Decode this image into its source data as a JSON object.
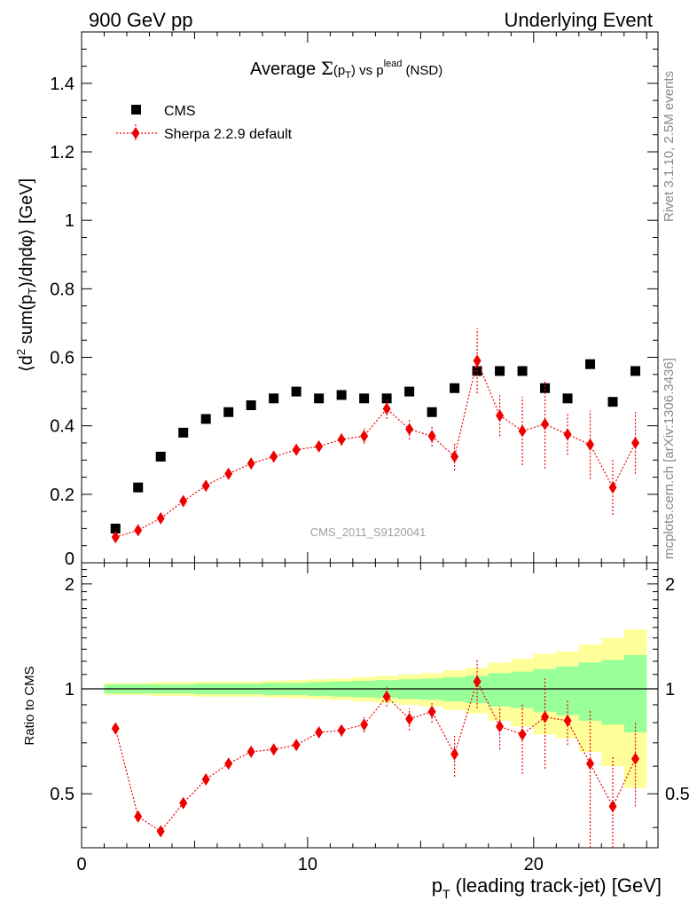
{
  "header": {
    "left": "900 GeV pp",
    "right": "Underlying Event"
  },
  "side_labels": {
    "rivet": "Rivet 3.1.10,  2.5M events",
    "mcplots": "mcplots.cern.ch [arXiv:1306.3436]"
  },
  "plot_title": {
    "prefix": "Average ",
    "sigma": "Σ",
    "pt_open": "(p",
    "t_sub": "T",
    "pt_close": ")",
    "vs": " vs p",
    "lead_sup": "lead",
    "suffix": " (NSD)"
  },
  "y_label": {
    "part1": "⟨d",
    "sup2": "2",
    "part2": " sum(p",
    "sub": "T",
    "part3": ")/dηdφ⟩ [GeV]"
  },
  "x_label": {
    "p": "p",
    "sub": "T",
    "rest": " (leading track-jet) [GeV]"
  },
  "ratio_label": "Ratio to CMS",
  "watermark": "CMS_2011_S9120041",
  "legend": [
    {
      "name": "CMS",
      "marker": "square",
      "color": "#000000"
    },
    {
      "name": "Sherpa 2.2.9 default",
      "marker": "diamond",
      "color": "#ee0000"
    }
  ],
  "colors": {
    "data": "#000000",
    "mc": "#ee0000",
    "band_inner": "#99ff99",
    "band_outer": "#ffff99"
  },
  "chart_data": {
    "type": "scatter",
    "x_edges": [
      1,
      2,
      3,
      4,
      5,
      6,
      7,
      8,
      9,
      10,
      11,
      12,
      13,
      14,
      15,
      16,
      17,
      18,
      19,
      20,
      21,
      22,
      23,
      24,
      25
    ],
    "xlim": [
      0,
      25.5
    ],
    "main": {
      "ylim": [
        0,
        1.55
      ],
      "y_ticks": [
        {
          "v": 0,
          "label": "0"
        },
        {
          "v": 0.2,
          "label": "0.2"
        },
        {
          "v": 0.4,
          "label": "0.4"
        },
        {
          "v": 0.6,
          "label": "0.6"
        },
        {
          "v": 0.8,
          "label": "0.8"
        },
        {
          "v": 1.0,
          "label": "1"
        },
        {
          "v": 1.2,
          "label": "1.2"
        },
        {
          "v": 1.4,
          "label": "1.4"
        }
      ],
      "series": [
        {
          "name": "CMS",
          "x": [
            1.5,
            2.5,
            3.5,
            4.5,
            5.5,
            6.5,
            7.5,
            8.5,
            9.5,
            10.5,
            11.5,
            12.5,
            13.5,
            14.5,
            15.5,
            16.5,
            17.5,
            18.5,
            19.5,
            20.5,
            21.5,
            22.5,
            23.5,
            24.5
          ],
          "y": [
            0.1,
            0.22,
            0.31,
            0.38,
            0.42,
            0.44,
            0.46,
            0.48,
            0.5,
            0.48,
            0.49,
            0.48,
            0.48,
            0.5,
            0.44,
            0.51,
            0.56,
            0.56,
            0.56,
            0.51,
            0.48,
            0.58,
            0.47,
            0.56
          ]
        },
        {
          "name": "Sherpa 2.2.9 default",
          "x": [
            1.5,
            2.5,
            3.5,
            4.5,
            5.5,
            6.5,
            7.5,
            8.5,
            9.5,
            10.5,
            11.5,
            12.5,
            13.5,
            14.5,
            15.5,
            16.5,
            17.5,
            18.5,
            19.5,
            20.5,
            21.5,
            22.5,
            23.5,
            24.5
          ],
          "y": [
            0.075,
            0.095,
            0.13,
            0.18,
            0.225,
            0.26,
            0.29,
            0.31,
            0.33,
            0.34,
            0.36,
            0.37,
            0.45,
            0.39,
            0.37,
            0.31,
            0.59,
            0.43,
            0.385,
            0.405,
            0.375,
            0.345,
            0.22,
            0.35
          ],
          "yerr": [
            0.008,
            0.008,
            0.008,
            0.01,
            0.01,
            0.01,
            0.01,
            0.012,
            0.012,
            0.015,
            0.018,
            0.022,
            0.03,
            0.03,
            0.03,
            0.04,
            0.095,
            0.06,
            0.1,
            0.13,
            0.06,
            0.1,
            0.08,
            0.09
          ]
        }
      ]
    },
    "ratio": {
      "ylim": [
        0.35,
        2.3
      ],
      "ylabel": "Ratio to CMS",
      "y_ticks": [
        {
          "v": 0.5,
          "label": "0.5"
        },
        {
          "v": 1,
          "label": "1"
        },
        {
          "v": 2,
          "label": "2"
        }
      ],
      "band_inner": [
        0.03,
        0.03,
        0.03,
        0.03,
        0.035,
        0.035,
        0.035,
        0.04,
        0.04,
        0.045,
        0.05,
        0.055,
        0.06,
        0.065,
        0.07,
        0.08,
        0.09,
        0.11,
        0.12,
        0.14,
        0.16,
        0.19,
        0.21,
        0.25
      ],
      "band_outer": [
        0.04,
        0.04,
        0.045,
        0.045,
        0.05,
        0.05,
        0.05,
        0.055,
        0.06,
        0.065,
        0.07,
        0.08,
        0.09,
        0.1,
        0.11,
        0.13,
        0.15,
        0.19,
        0.22,
        0.26,
        0.28,
        0.34,
        0.4,
        0.48
      ],
      "x": [
        1.5,
        2.5,
        3.5,
        4.5,
        5.5,
        6.5,
        7.5,
        8.5,
        9.5,
        10.5,
        11.5,
        12.5,
        13.5,
        14.5,
        15.5,
        16.5,
        17.5,
        18.5,
        19.5,
        20.5,
        21.5,
        22.5,
        23.5,
        24.5
      ],
      "y": [
        0.77,
        0.43,
        0.39,
        0.47,
        0.55,
        0.61,
        0.66,
        0.67,
        0.69,
        0.75,
        0.76,
        0.79,
        0.95,
        0.82,
        0.86,
        0.65,
        1.05,
        0.78,
        0.74,
        0.83,
        0.81,
        0.61,
        0.46,
        0.63
      ],
      "yerr": [
        0.008,
        0.008,
        0.008,
        0.01,
        0.012,
        0.012,
        0.015,
        0.02,
        0.02,
        0.025,
        0.03,
        0.04,
        0.06,
        0.06,
        0.06,
        0.09,
        0.17,
        0.11,
        0.17,
        0.24,
        0.12,
        0.26,
        0.18,
        0.17
      ]
    },
    "x_ticks": [
      {
        "v": 0,
        "label": "0"
      },
      {
        "v": 10,
        "label": "10"
      },
      {
        "v": 20,
        "label": "20"
      }
    ]
  }
}
